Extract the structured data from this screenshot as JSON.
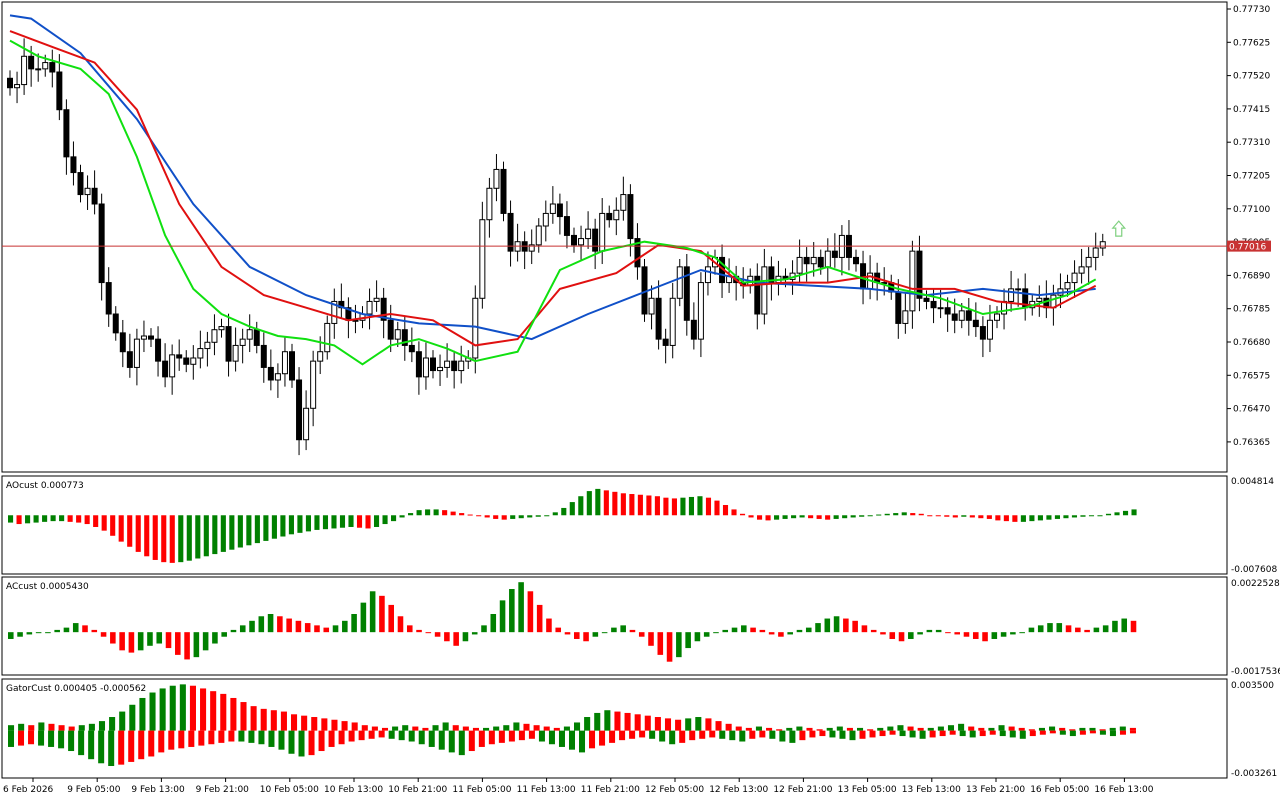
{
  "colors": {
    "bull": "#008000",
    "bear": "#ff0000",
    "jaw": "#1050c8",
    "teeth": "#e01010",
    "lips": "#10e010",
    "price_line": "#c83232",
    "price_tag_bg": "#c83232",
    "arrow_up": "#7fd07f",
    "fractal": "#a0a0a0"
  },
  "main": {
    "current_price_label": "0.77016",
    "y_ticks": [
      "0.77730",
      "0.77625",
      "0.77520",
      "0.77415",
      "0.77310",
      "0.77205",
      "0.77100",
      "0.76995",
      "0.76890",
      "0.76785",
      "0.76680",
      "0.76575",
      "0.76470",
      "0.76365"
    ]
  },
  "panes": {
    "ao": {
      "label": "AOcust 0.000773",
      "y_top": "0.004814",
      "y_bottom": "-0.007608"
    },
    "ac": {
      "label": "ACcust 0.0005430",
      "y_top": "0.0022528",
      "y_bottom": "-0.0017536"
    },
    "gator": {
      "label": "GatorCust 0.000405 -0.000562",
      "y_top": "0.003500",
      "y_bottom": "-0.003261"
    }
  },
  "x_ticks": [
    "6 Feb 2026",
    "9 Feb 05:00",
    "9 Feb 13:00",
    "9 Feb 21:00",
    "10 Feb 05:00",
    "10 Feb 13:00",
    "10 Feb 21:00",
    "11 Feb 05:00",
    "11 Feb 13:00",
    "11 Feb 21:00",
    "12 Feb 05:00",
    "12 Feb 13:00",
    "12 Feb 21:00",
    "13 Feb 05:00",
    "13 Feb 13:00",
    "13 Feb 21:00",
    "16 Feb 05:00",
    "16 Feb 13:00"
  ],
  "chart_data": {
    "type": "candlestick",
    "symbol_timeframe": "",
    "y_range": [
      0.7631,
      0.7778
    ],
    "close_series": [
      0.7752,
      0.7753,
      0.7762,
      0.7758,
      0.7758,
      0.776,
      0.7757,
      0.7745,
      0.773,
      0.7725,
      0.7718,
      0.772,
      0.7715,
      0.769,
      0.768,
      0.7674,
      0.7668,
      0.7663,
      0.7672,
      0.7673,
      0.7672,
      0.7665,
      0.766,
      0.7667,
      0.7666,
      0.7664,
      0.7666,
      0.7669,
      0.7671,
      0.7675,
      0.7676,
      0.7665,
      0.767,
      0.7672,
      0.7675,
      0.767,
      0.7663,
      0.7659,
      0.7661,
      0.7668,
      0.7659,
      0.764,
      0.765,
      0.7665,
      0.7668,
      0.7677,
      0.7684,
      0.7682,
      0.7678,
      0.7678,
      0.768,
      0.7684,
      0.7685,
      0.7678,
      0.7672,
      0.7675,
      0.767,
      0.7668,
      0.766,
      0.7666,
      0.7662,
      0.7663,
      0.7665,
      0.7662,
      0.7665,
      0.7666,
      0.7685,
      0.771,
      0.772,
      0.7726,
      0.7712,
      0.77,
      0.7703,
      0.77,
      0.7702,
      0.7708,
      0.7712,
      0.7715,
      0.7711,
      0.7705,
      0.7702,
      0.7704,
      0.7707,
      0.77,
      0.7712,
      0.771,
      0.7713,
      0.7718,
      0.7704,
      0.7695,
      0.768,
      0.7685,
      0.7672,
      0.767,
      0.7685,
      0.7695,
      0.7678,
      0.7672,
      0.769,
      0.7695,
      0.7698,
      0.769,
      0.7692,
      0.769,
      0.7689,
      0.7692,
      0.768,
      0.7695,
      0.769,
      0.7692,
      0.7691,
      0.7693,
      0.7698,
      0.7696,
      0.7698,
      0.7695,
      0.77,
      0.7698,
      0.7705,
      0.7698,
      0.7696,
      0.7688,
      0.7693,
      0.769,
      0.769,
      0.7687,
      0.7677,
      0.7681,
      0.77,
      0.7685,
      0.7684,
      0.7682,
      0.7682,
      0.768,
      0.7678,
      0.7681,
      0.7678,
      0.7676,
      0.7672,
      0.7678,
      0.768,
      0.7684,
      0.7688,
      0.7688,
      0.7682,
      0.7684,
      0.7685,
      0.7682,
      0.7686,
      0.7688,
      0.769,
      0.7693,
      0.7695,
      0.7698,
      0.7701,
      0.7703
    ],
    "alligator": {
      "jaw": [
        [
          0,
          0.7775
        ],
        [
          3,
          0.7774
        ],
        [
          10,
          0.7763
        ],
        [
          18,
          0.7742
        ],
        [
          26,
          0.7715
        ],
        [
          34,
          0.7695
        ],
        [
          42,
          0.7686
        ],
        [
          50,
          0.768
        ],
        [
          58,
          0.7677
        ],
        [
          66,
          0.7676
        ],
        [
          74,
          0.7672
        ],
        [
          82,
          0.768
        ],
        [
          90,
          0.7687
        ],
        [
          98,
          0.7694
        ],
        [
          106,
          0.769
        ],
        [
          114,
          0.7689
        ],
        [
          122,
          0.7688
        ],
        [
          130,
          0.7686
        ],
        [
          138,
          0.7688
        ],
        [
          146,
          0.7686
        ],
        [
          154,
          0.7688
        ]
      ],
      "teeth": [
        [
          0,
          0.777
        ],
        [
          6,
          0.7765
        ],
        [
          12,
          0.776
        ],
        [
          18,
          0.7745
        ],
        [
          24,
          0.7715
        ],
        [
          30,
          0.7695
        ],
        [
          36,
          0.7686
        ],
        [
          42,
          0.7682
        ],
        [
          48,
          0.7678
        ],
        [
          54,
          0.768
        ],
        [
          60,
          0.7678
        ],
        [
          66,
          0.767
        ],
        [
          72,
          0.7672
        ],
        [
          78,
          0.7688
        ],
        [
          86,
          0.7693
        ],
        [
          92,
          0.7702
        ],
        [
          98,
          0.77
        ],
        [
          104,
          0.7689
        ],
        [
          110,
          0.769
        ],
        [
          116,
          0.769
        ],
        [
          122,
          0.7692
        ],
        [
          128,
          0.7688
        ],
        [
          134,
          0.7688
        ],
        [
          140,
          0.7684
        ],
        [
          148,
          0.7682
        ],
        [
          154,
          0.7689
        ]
      ],
      "lips": [
        [
          0,
          0.7767
        ],
        [
          4,
          0.7762
        ],
        [
          10,
          0.7758
        ],
        [
          14,
          0.775
        ],
        [
          18,
          0.773
        ],
        [
          22,
          0.7705
        ],
        [
          26,
          0.7688
        ],
        [
          30,
          0.768
        ],
        [
          34,
          0.7676
        ],
        [
          38,
          0.7673
        ],
        [
          42,
          0.7672
        ],
        [
          46,
          0.767
        ],
        [
          50,
          0.7664
        ],
        [
          54,
          0.767
        ],
        [
          58,
          0.7672
        ],
        [
          62,
          0.7669
        ],
        [
          66,
          0.7665
        ],
        [
          72,
          0.7668
        ],
        [
          78,
          0.7694
        ],
        [
          84,
          0.77
        ],
        [
          90,
          0.7703
        ],
        [
          96,
          0.7701
        ],
        [
          100,
          0.7698
        ],
        [
          104,
          0.769
        ],
        [
          110,
          0.7691
        ],
        [
          116,
          0.7695
        ],
        [
          120,
          0.7692
        ],
        [
          126,
          0.7688
        ],
        [
          132,
          0.7685
        ],
        [
          138,
          0.768
        ],
        [
          144,
          0.7682
        ],
        [
          150,
          0.7686
        ],
        [
          154,
          0.7691
        ]
      ]
    },
    "indicator_ao": [
      -0.001,
      -0.0012,
      -0.0011,
      -0.001,
      -0.0009,
      -0.0008,
      -0.0008,
      -0.0009,
      -0.001,
      -0.0012,
      -0.0016,
      -0.0021,
      -0.0028,
      -0.0036,
      -0.0043,
      -0.005,
      -0.0056,
      -0.0061,
      -0.0064,
      -0.0065,
      -0.0064,
      -0.0062,
      -0.0059,
      -0.0056,
      -0.0053,
      -0.005,
      -0.0047,
      -0.0044,
      -0.0041,
      -0.0038,
      -0.0035,
      -0.0032,
      -0.0029,
      -0.0026,
      -0.0024,
      -0.0022,
      -0.002,
      -0.0019,
      -0.0018,
      -0.0017,
      -0.0016,
      -0.0017,
      -0.0018,
      -0.0016,
      -0.0012,
      -0.0008,
      -0.0003,
      0.0003,
      0.0007,
      0.0008,
      0.0008,
      0.0007,
      0.0005,
      0.0003,
      0.0001,
      -0.0001,
      -0.0003,
      -0.0005,
      -0.0006,
      -0.0005,
      -0.0004,
      -0.0003,
      -0.0002,
      0.0,
      0.0004,
      0.001,
      0.0018,
      0.0026,
      0.0033,
      0.0036,
      0.0034,
      0.0032,
      0.003,
      0.0029,
      0.0028,
      0.0027,
      0.0026,
      0.0024,
      0.0023,
      0.0024,
      0.0025,
      0.0026,
      0.0024,
      0.002,
      0.0014,
      0.0008,
      0.0002,
      -0.0003,
      -0.0006,
      -0.0007,
      -0.0006,
      -0.0005,
      -0.0004,
      -0.0003,
      -0.0004,
      -0.0005,
      -0.0006,
      -0.0005,
      -0.0004,
      -0.0003,
      -0.0002,
      -0.0001,
      0.0001,
      0.0002,
      0.0003,
      0.0004,
      0.0003,
      0.0002,
      0.0,
      -0.0001,
      -0.0002,
      -0.0003,
      -0.0002,
      -0.0003,
      -0.0004,
      -0.0005,
      -0.0007,
      -0.0008,
      -0.0009,
      -0.0009,
      -0.0008,
      -0.0007,
      -0.0006,
      -0.0005,
      -0.0004,
      -0.0003,
      -0.0002,
      -0.0001,
      0.0,
      0.0002,
      0.0004,
      0.0006,
      0.0008
    ],
    "indicator_ac": [
      -0.0003,
      -0.0002,
      -0.0001,
      0.0,
      0.0,
      0.0001,
      0.0002,
      0.0004,
      0.0003,
      0.0001,
      -0.0002,
      -0.0005,
      -0.0008,
      -0.0009,
      -0.0008,
      -0.0006,
      -0.0005,
      -0.0007,
      -0.001,
      -0.0012,
      -0.0011,
      -0.0008,
      -0.0005,
      -0.0002,
      0.0001,
      0.0003,
      0.0005,
      0.0007,
      0.0008,
      0.0007,
      0.0006,
      0.0005,
      0.0004,
      0.0003,
      0.0002,
      0.0003,
      0.0005,
      0.0008,
      0.0013,
      0.0018,
      0.0016,
      0.0012,
      0.0007,
      0.0003,
      0.0001,
      0.0,
      -0.0002,
      -0.0004,
      -0.0006,
      -0.0004,
      -0.0001,
      0.0003,
      0.0008,
      0.0014,
      0.0019,
      0.0022,
      0.0018,
      0.0012,
      0.0006,
      0.0002,
      -0.0001,
      -0.0003,
      -0.0004,
      -0.0002,
      0.0,
      0.0002,
      0.0003,
      0.0001,
      -0.0002,
      -0.0006,
      -0.001,
      -0.0013,
      -0.0011,
      -0.0007,
      -0.0004,
      -0.0002,
      0.0,
      0.0001,
      0.0002,
      0.0003,
      0.0002,
      0.0001,
      -0.0001,
      -0.0002,
      -0.0001,
      0.0001,
      0.0002,
      0.0004,
      0.0006,
      0.0007,
      0.0006,
      0.0005,
      0.0003,
      0.0001,
      -0.0001,
      -0.0003,
      -0.0004,
      -0.0003,
      -0.0001,
      0.0001,
      0.0001,
      0.0,
      -0.0001,
      -0.0002,
      -0.0003,
      -0.0004,
      -0.0003,
      -0.0002,
      -0.0001,
      0.0,
      0.0002,
      0.0003,
      0.0004,
      0.0004,
      0.0003,
      0.0002,
      0.0001,
      0.0002,
      0.0003,
      0.0005,
      0.0006,
      0.0005
    ],
    "indicator_gator_upper": [
      0.0004,
      0.0005,
      0.0004,
      0.0006,
      0.0005,
      0.0004,
      0.0003,
      0.0004,
      0.0005,
      0.0007,
      0.001,
      0.0014,
      0.0019,
      0.0024,
      0.0028,
      0.0031,
      0.0033,
      0.0034,
      0.0033,
      0.0031,
      0.0029,
      0.0027,
      0.0024,
      0.0021,
      0.0018,
      0.0016,
      0.0015,
      0.0014,
      0.0012,
      0.0011,
      0.001,
      0.0009,
      0.0008,
      0.0007,
      0.0006,
      0.0004,
      0.0003,
      0.0002,
      0.0003,
      0.0004,
      0.0003,
      0.0002,
      0.0004,
      0.0006,
      0.0004,
      0.0003,
      0.0002,
      0.0002,
      0.0003,
      0.0004,
      0.0006,
      0.0005,
      0.0004,
      0.0003,
      0.0002,
      0.0003,
      0.0006,
      0.001,
      0.0013,
      0.0015,
      0.0014,
      0.0013,
      0.0012,
      0.0011,
      0.001,
      0.0009,
      0.0008,
      0.0009,
      0.001,
      0.0009,
      0.0007,
      0.0005,
      0.0003,
      0.0002,
      0.0003,
      0.0002,
      0.0001,
      0.0002,
      0.0003,
      0.0002,
      0.0001,
      0.0002,
      0.0003,
      0.0002,
      0.0002,
      0.0001,
      0.0002,
      0.0003,
      0.0004,
      0.0003,
      0.0002,
      0.0002,
      0.0003,
      0.0004,
      0.0005,
      0.0003,
      0.0002,
      0.0002,
      0.0004,
      0.0003,
      0.0002,
      0.0001,
      0.0002,
      0.0003,
      0.0002,
      0.0001,
      0.0002,
      0.0002,
      0.0001,
      0.0002,
      0.0003,
      0.0002
    ],
    "indicator_gator_lower": [
      -0.0012,
      -0.0011,
      -0.001,
      -0.0011,
      -0.0012,
      -0.0013,
      -0.0015,
      -0.0018,
      -0.0021,
      -0.0024,
      -0.0026,
      -0.0025,
      -0.0023,
      -0.0021,
      -0.0019,
      -0.0016,
      -0.0014,
      -0.0013,
      -0.0012,
      -0.0011,
      -0.001,
      -0.0009,
      -0.0008,
      -0.0008,
      -0.0009,
      -0.001,
      -0.0012,
      -0.0014,
      -0.0017,
      -0.0019,
      -0.0018,
      -0.0015,
      -0.0012,
      -0.001,
      -0.0008,
      -0.0007,
      -0.0006,
      -0.0005,
      -0.0006,
      -0.0007,
      -0.0008,
      -0.001,
      -0.0012,
      -0.0014,
      -0.0016,
      -0.0018,
      -0.0015,
      -0.0012,
      -0.001,
      -0.0009,
      -0.0008,
      -0.0007,
      -0.0006,
      -0.0008,
      -0.001,
      -0.0012,
      -0.0014,
      -0.0016,
      -0.0013,
      -0.0011,
      -0.0009,
      -0.0007,
      -0.0006,
      -0.0005,
      -0.0006,
      -0.0008,
      -0.001,
      -0.0009,
      -0.0007,
      -0.0006,
      -0.0005,
      -0.0006,
      -0.0007,
      -0.0008,
      -0.0006,
      -0.0005,
      -0.0006,
      -0.0008,
      -0.0009,
      -0.0007,
      -0.0005,
      -0.0004,
      -0.0005,
      -0.0006,
      -0.0007,
      -0.0006,
      -0.0005,
      -0.0004,
      -0.0003,
      -0.0004,
      -0.0005,
      -0.0006,
      -0.0005,
      -0.0004,
      -0.0003,
      -0.0004,
      -0.0005,
      -0.0004,
      -0.0003,
      -0.0004,
      -0.0005,
      -0.0006,
      -0.0004,
      -0.0003,
      -0.0002,
      -0.0003,
      -0.0004,
      -0.0003,
      -0.0002,
      -0.0003,
      -0.0004,
      -0.0003,
      -0.0002
    ]
  }
}
